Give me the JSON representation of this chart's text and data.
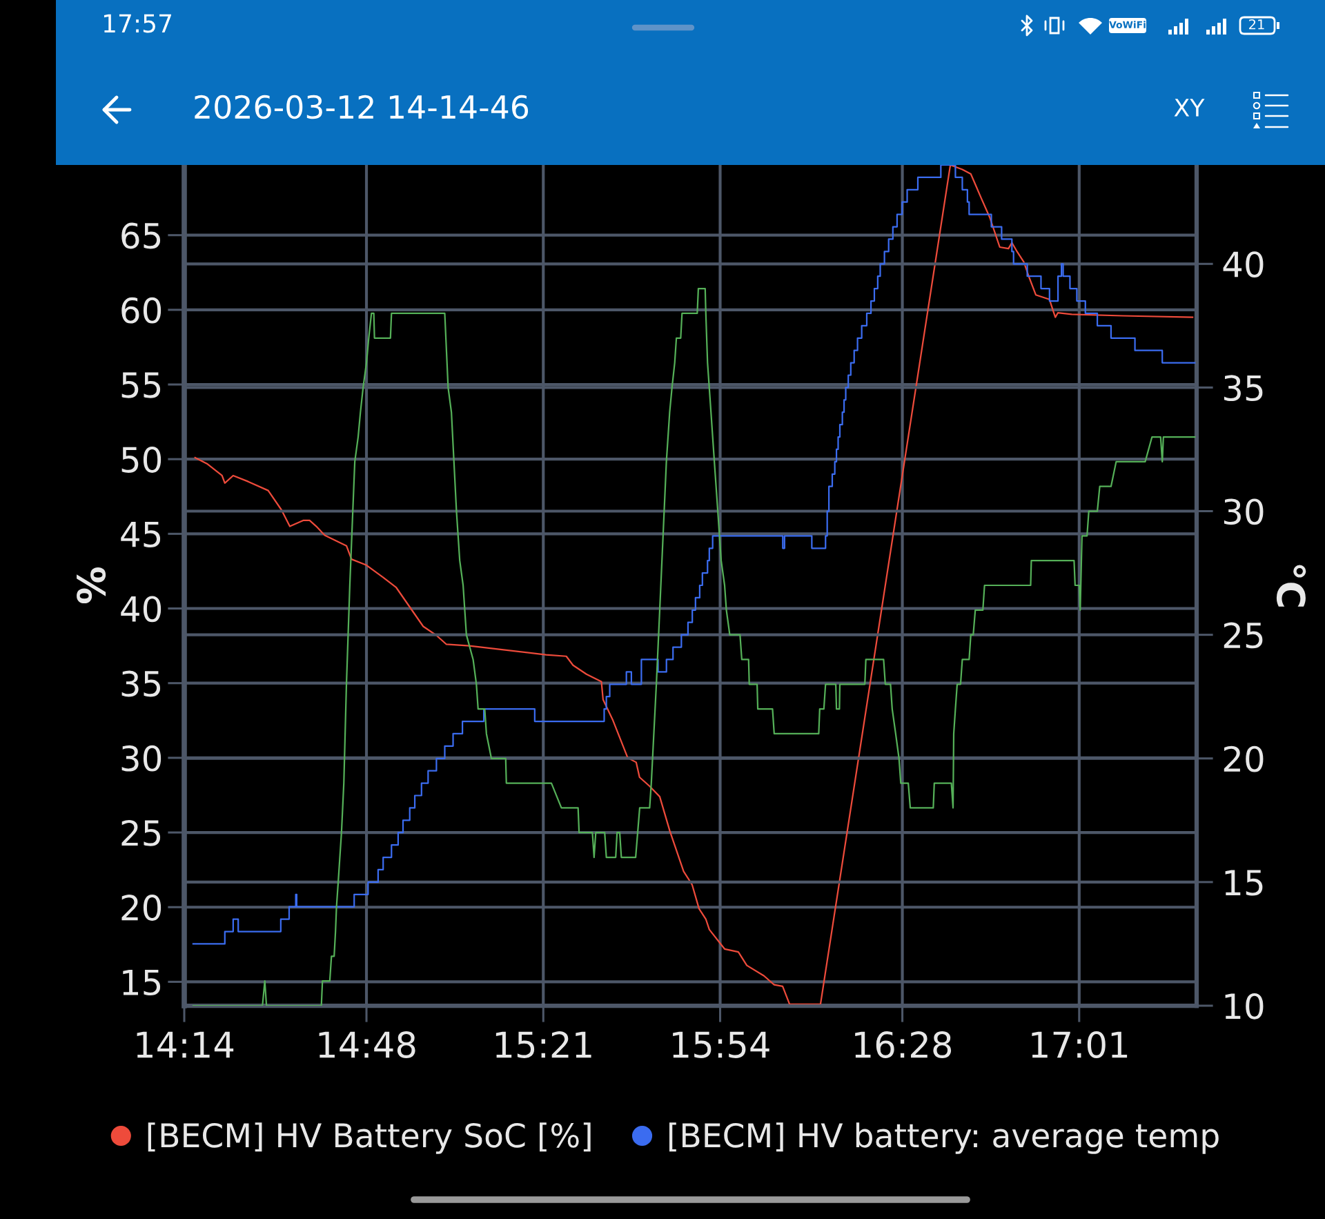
{
  "chart_data": {
    "type": "line",
    "title": "2026-03-12 14-14-46",
    "ylabel": "%",
    "y2label": "°C",
    "annotations": [
      "17:57",
      "VoWiFi",
      "21",
      "XY"
    ],
    "xlim": [
      14.2333,
      17.382
    ],
    "xticks": [
      {
        "value": 14.2333,
        "label": "14:14"
      },
      {
        "value": 14.8,
        "label": "14:48"
      },
      {
        "value": 15.35,
        "label": "15:21"
      },
      {
        "value": 15.9,
        "label": "15:54"
      },
      {
        "value": 16.4667,
        "label": "16:28"
      },
      {
        "value": 17.0167,
        "label": "17:01"
      }
    ],
    "ylim": [
      13.4,
      69.7
    ],
    "yticks": [
      15,
      20,
      25,
      30,
      35,
      40,
      45,
      50,
      55,
      60,
      65
    ],
    "y2lim": [
      10,
      44
    ],
    "y2ticks": [
      10,
      15,
      20,
      25,
      30,
      35,
      40
    ],
    "grid": true,
    "legend": "bottom",
    "series": [
      {
        "name": "[BECM] HV Battery SoC [%]",
        "color": "#ee4b3b",
        "x": [
          14.267,
          14.3037,
          14.3508,
          14.3595,
          14.3854,
          14.432,
          14.4943,
          14.5357,
          14.5616,
          14.6032,
          14.6231,
          14.644,
          14.6702,
          14.7377,
          14.7534,
          14.8,
          14.8508,
          14.8927,
          14.9765,
          15.0176,
          15.0487,
          15.1205,
          15.3587,
          15.4215,
          15.4425,
          15.4843,
          15.5307,
          15.5359,
          15.5668,
          15.6126,
          15.6388,
          15.6493,
          15.6807,
          15.7121,
          15.7435,
          15.7864,
          15.8129,
          15.8343,
          15.8555,
          15.8663,
          15.9139,
          15.9566,
          15.983,
          16.0364,
          16.0681,
          16.0943,
          16.116,
          16.2121,
          16.616,
          16.6532,
          16.6796,
          16.6956,
          16.7116,
          16.7383,
          16.7697,
          16.7967,
          16.8074,
          16.8234,
          16.8446,
          16.8606,
          16.8818,
          16.9242,
          16.9347,
          16.9425,
          16.9504,
          16.9936,
          17.153,
          17.3694
        ],
        "values": [
          50.1,
          49.7,
          48.9,
          48.4,
          48.9,
          48.5,
          47.9,
          46.6,
          45.5,
          45.9,
          45.9,
          45.5,
          44.9,
          44.2,
          43.3,
          42.9,
          42.1,
          41.4,
          38.8,
          38.2,
          37.6,
          37.5,
          36.9,
          36.8,
          36.2,
          35.6,
          35.1,
          33.9,
          32.5,
          30.0,
          29.7,
          28.7,
          28.1,
          27.4,
          25.1,
          22.4,
          21.5,
          19.9,
          19.2,
          18.5,
          17.2,
          17.0,
          16.1,
          15.4,
          14.8,
          14.7,
          13.5,
          13.5,
          69.7,
          69.4,
          69.1,
          68.3,
          67.5,
          66.2,
          64.2,
          64.1,
          64.5,
          63.9,
          63.2,
          62.2,
          61.0,
          60.7,
          60.0,
          59.5,
          59.8,
          59.7,
          59.6,
          59.5
        ]
      },
      {
        "name": "[BECM] HV battery: average temp",
        "color": "#3b6cf0",
        "type": "step",
        "axis": "y2",
        "x": [
          14.261,
          14.3595,
          14.3854,
          14.4011,
          14.5335,
          14.5595,
          14.5801,
          14.583,
          14.7618,
          14.805,
          14.8362,
          14.8519,
          14.8778,
          14.8985,
          14.9137,
          14.9346,
          14.9503,
          14.9712,
          14.9917,
          15.0176,
          15.0435,
          15.0694,
          15.0985,
          15.165,
          15.3233,
          15.5393,
          15.5461,
          15.5566,
          15.6084,
          15.6239,
          15.655,
          15.7068,
          15.733,
          15.7534,
          15.7794,
          15.8,
          15.8134,
          15.8233,
          15.8364,
          15.8448,
          15.8608,
          15.8663,
          15.8767,
          16.0948,
          16.1003,
          16.1851,
          16.2278,
          16.233,
          16.2383,
          16.2487,
          16.2566,
          16.2618,
          16.267,
          16.2723,
          16.2801,
          16.2854,
          16.2906,
          16.2985,
          16.3063,
          16.3168,
          16.3273,
          16.3403,
          16.356,
          16.3691,
          16.3796,
          16.3901,
          16.3979,
          16.411,
          16.4241,
          16.4372,
          16.4503,
          16.466,
          16.4817,
          16.5149,
          16.5864,
          16.6317,
          16.6532,
          16.6691,
          16.6744,
          16.7435,
          16.7754,
          16.8074,
          16.8126,
          16.8552,
          16.8979,
          16.9244,
          16.9508,
          16.9615,
          16.9668,
          16.988,
          17.0094,
          17.0359,
          17.0731,
          17.1157,
          17.1901,
          17.2751,
          17.3762
        ],
        "values": [
          12.5,
          13.0,
          13.5,
          13.0,
          13.5,
          14.0,
          14.5,
          14.0,
          14.5,
          15.0,
          15.5,
          16.0,
          16.5,
          17.0,
          17.5,
          18.0,
          18.5,
          19.0,
          19.5,
          20.0,
          20.5,
          21.0,
          21.5,
          22.0,
          21.5,
          22.0,
          22.5,
          23.0,
          23.5,
          23.0,
          24.0,
          23.5,
          24.0,
          24.5,
          25.0,
          25.5,
          26.0,
          26.5,
          27.0,
          27.5,
          28.0,
          28.5,
          29.0,
          28.5,
          29.0,
          28.5,
          29.0,
          30.0,
          31.0,
          31.5,
          32.0,
          32.5,
          33.0,
          33.5,
          34.0,
          34.5,
          35.0,
          35.5,
          36.0,
          36.5,
          37.0,
          37.5,
          38.0,
          38.5,
          39.0,
          39.5,
          40.0,
          40.5,
          41.0,
          41.5,
          42.0,
          42.5,
          43.0,
          43.5,
          44.0,
          43.5,
          43.0,
          42.5,
          42.0,
          41.5,
          41.0,
          40.5,
          40.0,
          39.5,
          39.0,
          38.5,
          39.5,
          40.0,
          39.5,
          39.0,
          38.5,
          38.0,
          37.5,
          37.0,
          36.5,
          36.0,
          36.0
        ]
      },
      {
        "color": "#55b058",
        "axis": "y2",
        "x": [
          14.261,
          14.4765,
          14.4838,
          14.489,
          14.6597,
          14.6631,
          14.6859,
          14.6911,
          14.6995,
          14.7037,
          14.7068,
          14.7121,
          14.7223,
          14.7296,
          14.7377,
          14.7482,
          14.7637,
          14.7741,
          14.7812,
          14.7896,
          14.8,
          14.8071,
          14.8155,
          14.8228,
          14.8249,
          14.8746,
          14.8778,
          15.0435,
          15.054,
          15.0642,
          15.0799,
          15.0901,
          15.1006,
          15.1108,
          15.1317,
          15.1419,
          15.1472,
          15.1678,
          15.1731,
          15.1885,
          15.233,
          15.2351,
          15.3752,
          15.4063,
          15.4582,
          15.4613,
          15.5027,
          15.5079,
          15.5131,
          15.5409,
          15.5461,
          15.5752,
          15.5794,
          15.5877,
          15.5927,
          15.6372,
          15.6498,
          15.6807,
          15.6859,
          15.7016,
          15.7121,
          15.7328,
          15.743,
          15.7503,
          15.7587,
          15.7639,
          15.7773,
          15.7815,
          15.8288,
          15.8322,
          15.8534,
          15.8555,
          15.8608,
          15.8715,
          15.882,
          15.8927,
          15.9032,
          15.9139,
          15.9194,
          15.9299,
          15.9618,
          15.9673,
          15.9885,
          15.9906,
          16.015,
          16.0171,
          16.0629,
          16.0681,
          16.2066,
          16.2097,
          16.2226,
          16.2278,
          16.2597,
          16.2618,
          16.271,
          16.2723,
          16.35,
          16.3532,
          16.4084,
          16.4137,
          16.4299,
          16.4351,
          16.4459,
          16.4563,
          16.4618,
          16.4851,
          16.4914,
          16.5629,
          16.566,
          16.6191,
          16.6244,
          16.6265,
          16.6317,
          16.6372,
          16.6477,
          16.6532,
          16.6744,
          16.6796,
          16.6872,
          16.6935,
          16.7171,
          16.7223,
          16.8657,
          16.8678,
          17.0008,
          17.004,
          17.0171,
          17.0199,
          17.0254,
          17.0411,
          17.0466,
          17.0731,
          17.0807,
          17.1157,
          17.1317,
          17.222,
          17.2432,
          17.2699,
          17.2752,
          17.2786,
          17.3762
        ],
        "values": [
          10.0,
          10.0,
          11.0,
          10.0,
          10.0,
          11.0,
          11.0,
          12.0,
          12.0,
          13.0,
          14.0,
          15.0,
          17.0,
          19.0,
          23.0,
          27.0,
          32.0,
          33.0,
          34.0,
          35.0,
          36.0,
          37.0,
          38.0,
          38.0,
          37.0,
          37.0,
          38.0,
          38.0,
          35.0,
          34.0,
          30.0,
          28.0,
          27.0,
          25.0,
          24.0,
          23.0,
          22.0,
          22.0,
          21.0,
          20.0,
          20.0,
          19.0,
          19.0,
          18.0,
          18.0,
          17.0,
          17.0,
          16.0,
          17.0,
          17.0,
          16.0,
          16.0,
          17.0,
          17.0,
          16.0,
          16.0,
          18.0,
          18.0,
          19.0,
          23.0,
          26.0,
          32.0,
          34.0,
          35.0,
          36.0,
          37.0,
          37.0,
          38.0,
          38.0,
          39.0,
          39.0,
          38.0,
          36.0,
          34.0,
          32.0,
          30.0,
          28.0,
          27.0,
          26.0,
          25.0,
          25.0,
          24.0,
          24.0,
          23.0,
          23.0,
          22.0,
          22.0,
          21.0,
          21.0,
          22.0,
          22.0,
          23.0,
          23.0,
          22.0,
          22.0,
          23.0,
          23.0,
          24.0,
          24.0,
          23.0,
          23.0,
          22.0,
          21.0,
          20.0,
          19.0,
          19.0,
          18.0,
          18.0,
          19.0,
          19.0,
          18.0,
          21.0,
          22.0,
          23.0,
          23.0,
          24.0,
          24.0,
          25.0,
          25.0,
          26.0,
          26.0,
          27.0,
          27.0,
          28.0,
          28.0,
          27.0,
          27.0,
          26.0,
          29.0,
          29.0,
          30.0,
          30.0,
          31.0,
          31.0,
          32.0,
          32.0,
          33.0,
          33.0,
          32.0,
          33.0,
          33.0
        ]
      }
    ]
  }
}
